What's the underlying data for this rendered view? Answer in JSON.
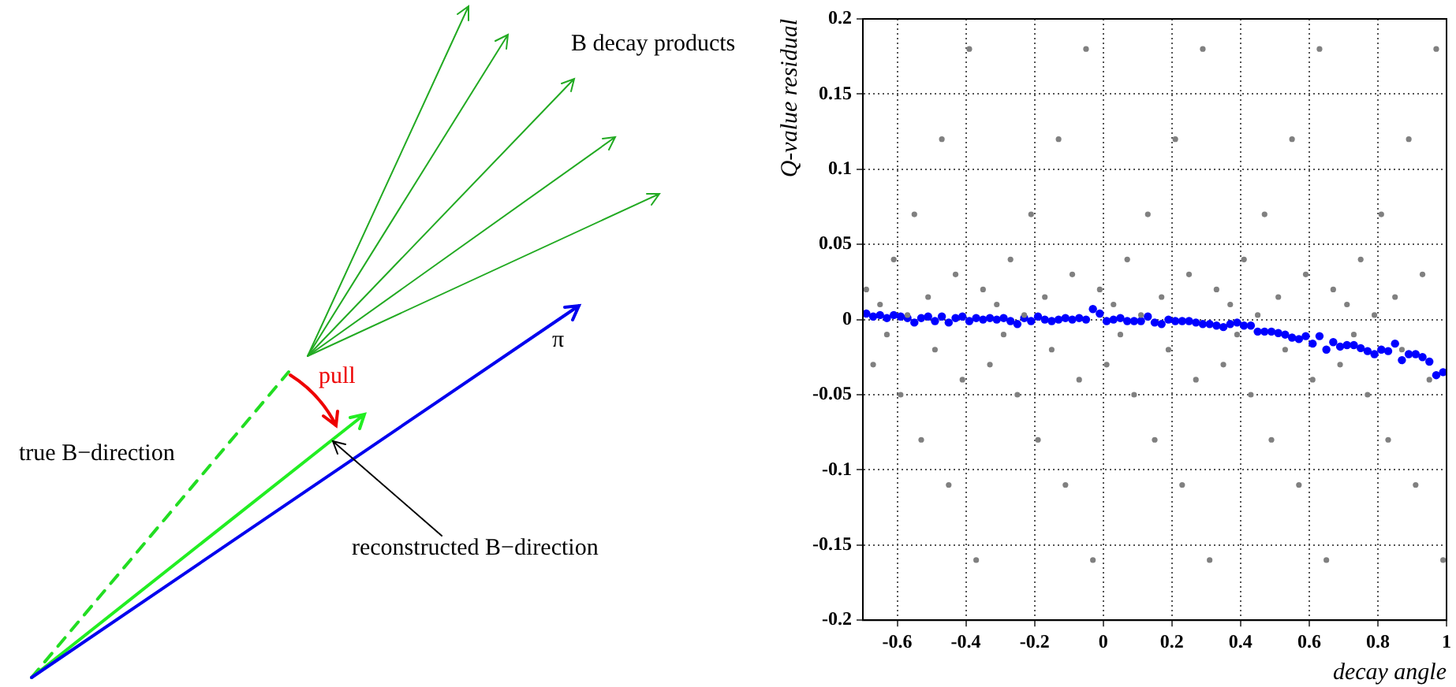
{
  "chart_data": {
    "type": "scatter",
    "xlabel": "decay angle",
    "ylabel": "Q-value residual",
    "annotations": [
      "B decay products",
      "π",
      "pull",
      "true B−direction",
      "reconstructed B−direction"
    ],
    "x": [
      -0.69,
      -0.67,
      -0.65,
      -0.63,
      -0.61,
      -0.59,
      -0.57,
      -0.55,
      -0.53,
      -0.51,
      -0.49,
      -0.47,
      -0.45,
      -0.43,
      -0.41,
      -0.39,
      -0.37,
      -0.35,
      -0.33,
      -0.31,
      -0.29,
      -0.27,
      -0.25,
      -0.23,
      -0.21,
      -0.19,
      -0.17,
      -0.15,
      -0.13,
      -0.11,
      -0.09,
      -0.07,
      -0.05,
      -0.03,
      -0.01,
      0.01,
      0.03,
      0.05,
      0.07,
      0.09,
      0.11,
      0.13,
      0.15,
      0.17,
      0.19,
      0.21,
      0.23,
      0.25,
      0.27,
      0.29,
      0.31,
      0.33,
      0.35,
      0.37,
      0.39,
      0.41,
      0.43,
      0.45,
      0.47,
      0.49,
      0.51,
      0.53,
      0.55,
      0.57,
      0.59,
      0.61,
      0.63,
      0.65,
      0.67,
      0.69,
      0.71,
      0.73,
      0.75,
      0.77,
      0.79,
      0.81,
      0.83,
      0.85,
      0.87,
      0.89,
      0.91,
      0.93,
      0.95,
      0.97,
      0.99
    ],
    "series": [
      {
        "color": "#808080",
        "values": [
          0.02,
          -0.03,
          0.01,
          -0.01,
          0.04,
          -0.05,
          0.003,
          0.07,
          -0.08,
          0.015,
          -0.02,
          0.12,
          -0.11,
          0.03,
          -0.04,
          0.18,
          -0.16,
          0.02,
          -0.03,
          0.01,
          -0.01,
          0.04,
          -0.05,
          0.003,
          0.07,
          -0.08,
          0.015,
          -0.02,
          0.12,
          -0.11,
          0.03,
          -0.04,
          0.18,
          -0.16,
          0.02,
          -0.03,
          0.01,
          -0.01,
          0.04,
          -0.05,
          0.003,
          0.07,
          -0.08,
          0.015,
          -0.02,
          0.12,
          -0.11,
          0.03,
          -0.04,
          0.18,
          -0.16,
          0.02,
          -0.03,
          0.01,
          -0.01,
          0.04,
          -0.05,
          0.003,
          0.07,
          -0.08,
          0.015,
          -0.02,
          0.12,
          -0.11,
          0.03,
          -0.04,
          0.18,
          -0.16,
          0.02,
          -0.03,
          0.01,
          -0.01,
          0.04,
          -0.05,
          0.003,
          0.07,
          -0.08,
          0.015,
          -0.02,
          0.12,
          -0.11,
          0.03,
          -0.04,
          0.18,
          -0.16
        ]
      },
      {
        "color": "#0000ff",
        "values": [
          0.004,
          0.002,
          0.003,
          0.001,
          0.003,
          0.002,
          0.001,
          -0.002,
          0.001,
          0.002,
          -0.001,
          0.002,
          -0.002,
          0.001,
          0.002,
          -0.001,
          0.001,
          0,
          0.001,
          0,
          0.001,
          -0.001,
          -0.003,
          0.001,
          -0.001,
          0.002,
          0,
          -0.001,
          0,
          0.001,
          0,
          0.001,
          0,
          0.007,
          0.004,
          -0.001,
          0,
          0.001,
          -0.001,
          -0.001,
          -0.001,
          0.002,
          -0.002,
          -0.003,
          0,
          -0.001,
          -0.001,
          -0.001,
          -0.002,
          -0.003,
          -0.003,
          -0.004,
          -0.005,
          -0.003,
          -0.002,
          -0.004,
          -0.004,
          -0.008,
          -0.008,
          -0.008,
          -0.009,
          -0.01,
          -0.012,
          -0.013,
          -0.011,
          -0.016,
          -0.011,
          -0.02,
          -0.015,
          -0.018,
          -0.017,
          -0.017,
          -0.019,
          -0.021,
          -0.023,
          -0.02,
          -0.021,
          -0.016,
          -0.027,
          -0.023,
          -0.023,
          -0.025,
          -0.028,
          -0.037,
          -0.035
        ]
      }
    ],
    "marker": "circle",
    "xlim": [
      -0.7,
      1
    ],
    "xticks": [
      -0.6,
      -0.4,
      -0.2,
      0,
      0.2,
      0.4,
      0.6,
      0.8,
      1
    ],
    "ylim": [
      -0.2,
      0.2
    ],
    "yticks": [
      -0.2,
      -0.15,
      -0.1,
      -0.05,
      0,
      0.05,
      0.1,
      0.15,
      0.2
    ],
    "grid": true
  }
}
